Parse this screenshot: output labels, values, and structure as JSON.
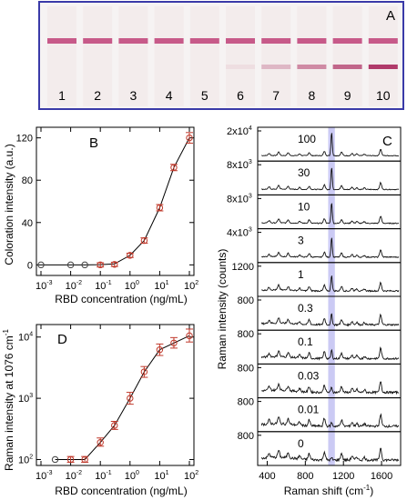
{
  "colors": {
    "strip_border": "#3a3aa8",
    "strip_bg": "#f3ecec",
    "control_line": "#c24a7e",
    "test_line": "#b03a6a",
    "marker_edge": "#c0392b",
    "marker_edge_gray": "#444444",
    "highlight": "#b9b8f0",
    "line": "#000000"
  },
  "panelA": {
    "label": "A",
    "strips": [
      {
        "number": "1",
        "test_line_intensity": 0
      },
      {
        "number": "2",
        "test_line_intensity": 0
      },
      {
        "number": "3",
        "test_line_intensity": 0
      },
      {
        "number": "4",
        "test_line_intensity": 0
      },
      {
        "number": "5",
        "test_line_intensity": 0
      },
      {
        "number": "6",
        "test_line_intensity": 0.08
      },
      {
        "number": "7",
        "test_line_intensity": 0.3
      },
      {
        "number": "8",
        "test_line_intensity": 0.55
      },
      {
        "number": "9",
        "test_line_intensity": 0.75
      },
      {
        "number": "10",
        "test_line_intensity": 1.0
      }
    ]
  },
  "chart_data": [
    {
      "panel": "B",
      "type": "scatter",
      "label": "B",
      "xlabel": "RBD concentration (ng/mL)",
      "ylabel": "Coloration intensity (a.u.)",
      "xscale": "log",
      "xlim": [
        0.001,
        100
      ],
      "ylim": [
        -10,
        130
      ],
      "x_ticks": [
        {
          "value": 0.001,
          "mant": "10",
          "exp": "-3"
        },
        {
          "value": 0.01,
          "mant": "10",
          "exp": "-2"
        },
        {
          "value": 0.1,
          "mant": "10",
          "exp": "-1"
        },
        {
          "value": 1,
          "mant": "10",
          "exp": "0"
        },
        {
          "value": 10,
          "mant": "10",
          "exp": "1"
        },
        {
          "value": 100,
          "mant": "10",
          "exp": "2"
        }
      ],
      "y_ticks": [
        {
          "value": 0,
          "label": "0"
        },
        {
          "value": 40,
          "label": "40"
        },
        {
          "value": 80,
          "label": "80"
        },
        {
          "value": 120,
          "label": "120"
        }
      ],
      "points": [
        {
          "x": 0.001,
          "y": 0,
          "err": 0,
          "style": "gray"
        },
        {
          "x": 0.01,
          "y": 0,
          "err": 0,
          "style": "gray"
        },
        {
          "x": 0.03,
          "y": 0,
          "err": 0,
          "style": "gray"
        },
        {
          "x": 0.1,
          "y": 0,
          "err": 2,
          "style": "red"
        },
        {
          "x": 0.3,
          "y": 0.5,
          "err": 2,
          "style": "red"
        },
        {
          "x": 1,
          "y": 9,
          "err": 2,
          "style": "red"
        },
        {
          "x": 3,
          "y": 23,
          "err": 2.5,
          "style": "red"
        },
        {
          "x": 10,
          "y": 54,
          "err": 3,
          "style": "red"
        },
        {
          "x": 30,
          "y": 92,
          "err": 3,
          "style": "red"
        },
        {
          "x": 100,
          "y": 120,
          "err": 5,
          "style": "red"
        }
      ],
      "curve": [
        [
          0.001,
          0
        ],
        [
          0.03,
          0
        ],
        [
          0.1,
          0.2
        ],
        [
          0.3,
          1
        ],
        [
          1,
          9
        ],
        [
          3,
          23
        ],
        [
          10,
          54
        ],
        [
          30,
          92
        ],
        [
          100,
          120
        ]
      ]
    },
    {
      "panel": "D",
      "type": "scatter",
      "label": "D",
      "xlabel": "RBD concentration (ng/mL)",
      "ylabel": "Raman intensity at 1076 cm",
      "ylabel_sup": "-1",
      "xscale": "log",
      "yscale": "log",
      "xlim": [
        0.001,
        100
      ],
      "ylim": [
        80,
        16000
      ],
      "x_ticks": [
        {
          "value": 0.001,
          "mant": "10",
          "exp": "-3"
        },
        {
          "value": 0.01,
          "mant": "10",
          "exp": "-2"
        },
        {
          "value": 0.1,
          "mant": "10",
          "exp": "-1"
        },
        {
          "value": 1,
          "mant": "10",
          "exp": "0"
        },
        {
          "value": 10,
          "mant": "10",
          "exp": "1"
        },
        {
          "value": 100,
          "mant": "10",
          "exp": "2"
        }
      ],
      "y_ticks": [
        {
          "value": 100,
          "mant": "10",
          "exp": "2"
        },
        {
          "value": 1000,
          "mant": "10",
          "exp": "3"
        },
        {
          "value": 10000,
          "mant": "10",
          "exp": "4"
        }
      ],
      "points": [
        {
          "x": 0.003,
          "y": 100,
          "err_lo": 0,
          "err_hi": 0,
          "style": "gray"
        },
        {
          "x": 0.01,
          "y": 100,
          "err_lo": 10,
          "err_hi": 12,
          "style": "red"
        },
        {
          "x": 0.03,
          "y": 100,
          "err_lo": 10,
          "err_hi": 12,
          "style": "red"
        },
        {
          "x": 0.1,
          "y": 190,
          "err_lo": 25,
          "err_hi": 35,
          "style": "red"
        },
        {
          "x": 0.3,
          "y": 360,
          "err_lo": 50,
          "err_hi": 60,
          "style": "red"
        },
        {
          "x": 1,
          "y": 1000,
          "err_lo": 200,
          "err_hi": 250,
          "style": "red"
        },
        {
          "x": 3,
          "y": 2700,
          "err_lo": 500,
          "err_hi": 600,
          "style": "red"
        },
        {
          "x": 10,
          "y": 6200,
          "err_lo": 1200,
          "err_hi": 1500,
          "style": "red"
        },
        {
          "x": 30,
          "y": 8000,
          "err_lo": 1400,
          "err_hi": 1800,
          "style": "red"
        },
        {
          "x": 100,
          "y": 10500,
          "err_lo": 2200,
          "err_hi": 3000,
          "style": "red"
        }
      ],
      "curve": [
        [
          0.003,
          100
        ],
        [
          0.03,
          100
        ],
        [
          0.1,
          190
        ],
        [
          0.3,
          360
        ],
        [
          1,
          1000
        ],
        [
          3,
          2700
        ],
        [
          10,
          6200
        ],
        [
          30,
          8000
        ],
        [
          100,
          10500
        ]
      ]
    },
    {
      "panel": "C",
      "type": "line",
      "label": "C",
      "xlabel": "Raman shift (cm",
      "xlabel_sup": "-1",
      "xlabel_tail": ")",
      "ylabel": "Raman intensity (counts)",
      "xlim": [
        300,
        1800
      ],
      "x_ticks": [
        {
          "value": 400,
          "label": "400"
        },
        {
          "value": 800,
          "label": "800"
        },
        {
          "value": 1200,
          "label": "1200"
        },
        {
          "value": 1600,
          "label": "1600"
        }
      ],
      "highlight_band": [
        1040,
        1110
      ],
      "spectra": [
        {
          "concentration_label": "100",
          "ytick_mant": "2x10",
          "ytick_exp": "4",
          "ytick_label": "",
          "peak_ratio": 0.95
        },
        {
          "concentration_label": "30",
          "ytick_mant": "8x10",
          "ytick_exp": "3",
          "ytick_label": "",
          "peak_ratio": 0.9
        },
        {
          "concentration_label": "10",
          "ytick_mant": "8x10",
          "ytick_exp": "3",
          "ytick_label": "",
          "peak_ratio": 0.85
        },
        {
          "concentration_label": "3",
          "ytick_mant": "4x10",
          "ytick_exp": "3",
          "ytick_label": "",
          "peak_ratio": 0.8
        },
        {
          "concentration_label": "1",
          "ytick_mant": "",
          "ytick_exp": "",
          "ytick_label": "1200",
          "peak_ratio": 0.65
        },
        {
          "concentration_label": "0.3",
          "ytick_mant": "",
          "ytick_exp": "",
          "ytick_label": "800",
          "peak_ratio": 0.45
        },
        {
          "concentration_label": "0.1",
          "ytick_mant": "",
          "ytick_exp": "",
          "ytick_label": "800",
          "peak_ratio": 0.35
        },
        {
          "concentration_label": "0.03",
          "ytick_mant": "",
          "ytick_exp": "",
          "ytick_label": "800",
          "peak_ratio": 0.22
        },
        {
          "concentration_label": "0.01",
          "ytick_mant": "",
          "ytick_exp": "",
          "ytick_label": "800",
          "peak_ratio": 0.15
        },
        {
          "concentration_label": "0",
          "ytick_mant": "",
          "ytick_exp": "",
          "ytick_label": "800",
          "peak_ratio": 0.08
        }
      ]
    }
  ]
}
